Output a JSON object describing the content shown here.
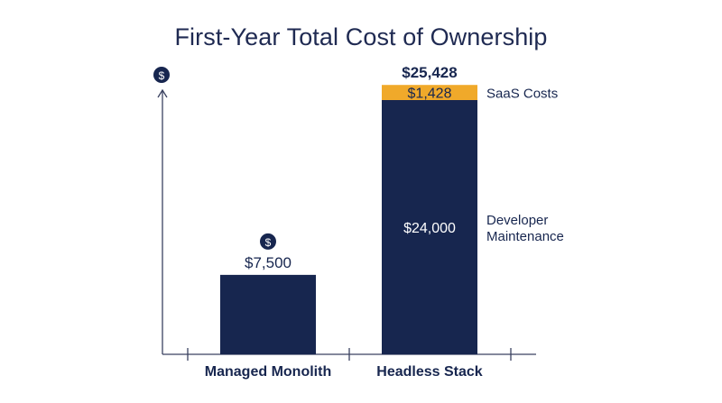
{
  "colors": {
    "navy": "#17264f",
    "orange": "#f0a92a",
    "axis": "#3a4260",
    "white": "#ffffff"
  },
  "chart_data": {
    "type": "bar",
    "stacked": true,
    "title": "First-Year Total Cost of Ownership",
    "y_axis_icon": "dollar-icon",
    "ylim": [
      0,
      28000
    ],
    "categories": [
      "Managed Monolith",
      "Headless Stack"
    ],
    "series": [
      {
        "name": "Developer Maintenance",
        "color": "#17264f",
        "values": [
          7500,
          24000
        ],
        "labels": [
          "$7,500",
          "$24,000"
        ]
      },
      {
        "name": "SaaS Costs",
        "color": "#f0a92a",
        "values": [
          0,
          1428
        ],
        "labels": [
          "",
          "$1,428"
        ]
      }
    ],
    "totals": [
      "",
      "$25,428"
    ]
  }
}
